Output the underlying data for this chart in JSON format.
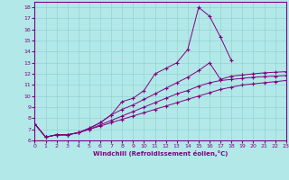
{
  "bg_color": "#b2e8e8",
  "line_color": "#800080",
  "xlabel": "Windchill (Refroidissement éolien,°C)",
  "xlim": [
    0,
    23
  ],
  "ylim": [
    6,
    18.5
  ],
  "xticks": [
    0,
    1,
    2,
    3,
    4,
    5,
    6,
    7,
    8,
    9,
    10,
    11,
    12,
    13,
    14,
    15,
    16,
    17,
    18,
    19,
    20,
    21,
    22,
    23
  ],
  "yticks": [
    6,
    7,
    8,
    9,
    10,
    11,
    12,
    13,
    14,
    15,
    16,
    17,
    18
  ],
  "line1_x": [
    0,
    1,
    2,
    3,
    4,
    5,
    6,
    7,
    8,
    9,
    10,
    11,
    12,
    13,
    14,
    15,
    16,
    17,
    18
  ],
  "line1_y": [
    7.5,
    6.3,
    6.5,
    6.5,
    6.7,
    7.1,
    7.6,
    8.3,
    9.5,
    9.8,
    10.5,
    12.0,
    12.5,
    13.0,
    14.2,
    18.0,
    17.2,
    15.3,
    13.2
  ],
  "line2_x": [
    0,
    1,
    2,
    3,
    4,
    5,
    6,
    7,
    8,
    9,
    10,
    11,
    12,
    13,
    14,
    15,
    16,
    17,
    18,
    19,
    20,
    21,
    22,
    23
  ],
  "line2_y": [
    7.5,
    6.3,
    6.5,
    6.5,
    6.7,
    7.1,
    7.6,
    8.3,
    8.8,
    9.2,
    9.7,
    10.2,
    10.7,
    11.2,
    11.7,
    12.3,
    13.0,
    11.5,
    11.8,
    11.9,
    12.0,
    12.1,
    12.15,
    12.2
  ],
  "line3_x": [
    0,
    1,
    2,
    3,
    4,
    5,
    6,
    7,
    8,
    9,
    10,
    11,
    12,
    13,
    14,
    15,
    16,
    17,
    18,
    19,
    20,
    21,
    22,
    23
  ],
  "line3_y": [
    7.5,
    6.3,
    6.5,
    6.5,
    6.7,
    7.0,
    7.4,
    7.8,
    8.2,
    8.6,
    9.0,
    9.4,
    9.8,
    10.2,
    10.5,
    10.9,
    11.2,
    11.4,
    11.5,
    11.6,
    11.7,
    11.75,
    11.8,
    11.85
  ],
  "line4_x": [
    0,
    1,
    2,
    3,
    4,
    5,
    6,
    7,
    8,
    9,
    10,
    11,
    12,
    13,
    14,
    15,
    16,
    17,
    18,
    19,
    20,
    21,
    22,
    23
  ],
  "line4_y": [
    7.5,
    6.3,
    6.5,
    6.5,
    6.7,
    7.0,
    7.3,
    7.6,
    7.9,
    8.2,
    8.5,
    8.8,
    9.1,
    9.4,
    9.7,
    10.0,
    10.3,
    10.6,
    10.8,
    11.0,
    11.1,
    11.2,
    11.3,
    11.4
  ]
}
